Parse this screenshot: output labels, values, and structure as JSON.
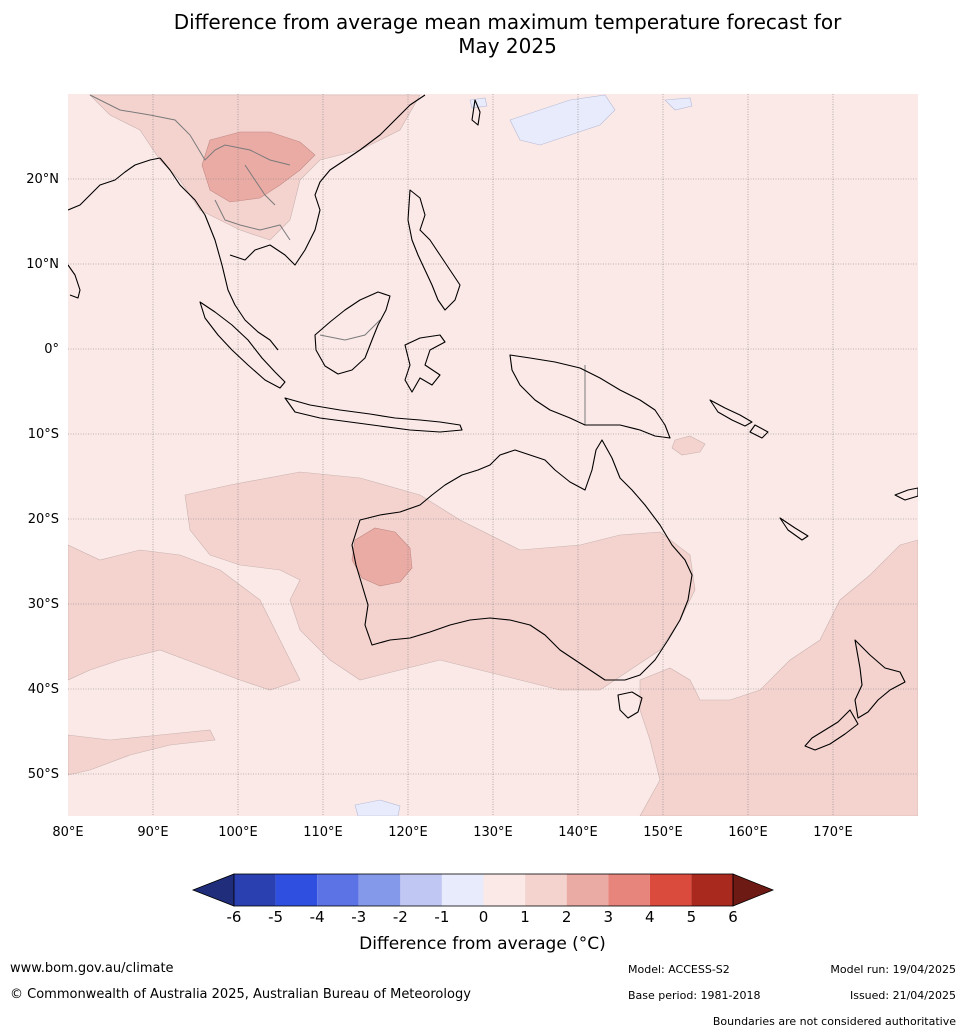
{
  "title": {
    "line1": "Difference from average mean maximum temperature forecast for",
    "line2": "May 2025"
  },
  "map": {
    "region": "Maritime Continent, Australia and Southwest Pacific",
    "lon_labels": [
      "80°E",
      "90°E",
      "100°E",
      "110°E",
      "120°E",
      "130°E",
      "140°E",
      "150°E",
      "160°E",
      "170°E"
    ],
    "lat_labels": [
      "20°N",
      "10°N",
      "0°",
      "10°S",
      "20°S",
      "30°S",
      "40°S",
      "50°S"
    ],
    "lon_range": [
      80,
      180
    ],
    "lat_range": [
      -55,
      30
    ],
    "grid": true,
    "colors": {
      "anom_0_1": "#fbe9e7",
      "anom_1_2": "#f4d3cf",
      "anom_2_3": "#ebaba5",
      "anom_neg1_0": "#e8ebfb",
      "coast": "#000000",
      "borders": "#7a7a7a"
    }
  },
  "colorbar": {
    "ticks": [
      "-6",
      "-5",
      "-4",
      "-3",
      "-2",
      "-1",
      "0",
      "1",
      "2",
      "3",
      "4",
      "5",
      "6"
    ],
    "colors": [
      "#1f2d7b",
      "#2a3fb0",
      "#2f4fe0",
      "#5b73e4",
      "#8599ea",
      "#c0c7f2",
      "#e8ebfb",
      "#fbe9e7",
      "#f4d3cf",
      "#ebaba5",
      "#e7857c",
      "#db4b3d",
      "#a9291f",
      "#6e1a14"
    ],
    "title": "Difference from average (°C)"
  },
  "footer": {
    "website": "www.bom.gov.au/climate",
    "copyright": "© Commonwealth of Australia 2025, Australian Bureau of Meteorology",
    "model": "Model: ACCESS-S2",
    "base_period": "Base period: 1981-2018",
    "model_run": "Model run: 19/04/2025",
    "issued": "Issued: 21/04/2025",
    "disclaimer": "Boundaries are not considered authoritative"
  }
}
